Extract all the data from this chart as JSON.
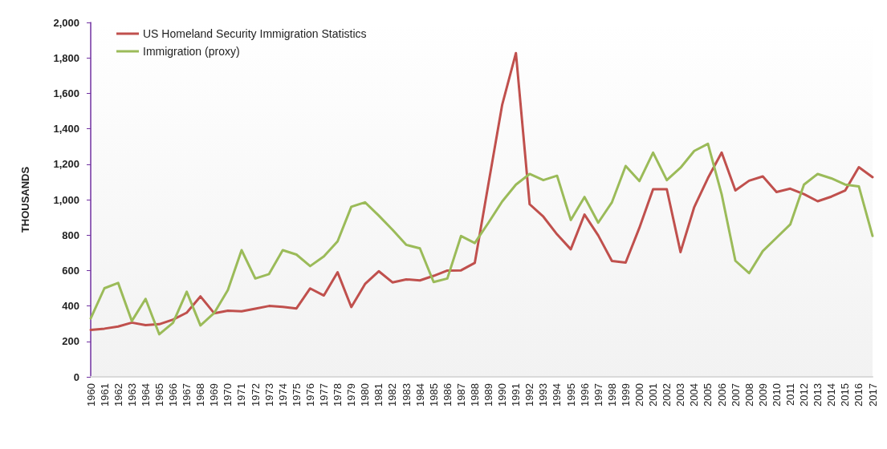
{
  "chart_data": {
    "type": "line",
    "ylabel": "THOUSANDS",
    "categories": [
      "1960",
      "1961",
      "1962",
      "1963",
      "1964",
      "1965",
      "1966",
      "1967",
      "1968",
      "1969",
      "1970",
      "1971",
      "1972",
      "1973",
      "1974",
      "1975",
      "1976",
      "1977",
      "1978",
      "1979",
      "1980",
      "1981",
      "1982",
      "1983",
      "1984",
      "1985",
      "1986",
      "1987",
      "1988",
      "1989",
      "1990",
      "1991",
      "1992",
      "1993",
      "1994",
      "1995",
      "1996",
      "1997",
      "1998",
      "1999",
      "2000",
      "2001",
      "2002",
      "2003",
      "2004",
      "2005",
      "2006",
      "2007",
      "2008",
      "2009",
      "2010",
      "2011",
      "2012",
      "2013",
      "2014",
      "2015",
      "2016",
      "2017"
    ],
    "series": [
      {
        "name": "US Homeland Security Immigration Statistics",
        "color": "#c0504d",
        "values": [
          265,
          272,
          284,
          306,
          292,
          297,
          323,
          362,
          454,
          359,
          373,
          370,
          385,
          400,
          395,
          386,
          499,
          459,
          590,
          394,
          524,
          596,
          533,
          550,
          544,
          570,
          600,
          601,
          643,
          1090,
          1536,
          1827,
          974,
          904,
          804,
          720,
          916,
          798,
          654,
          645,
          841,
          1059,
          1059,
          704,
          958,
          1122,
          1266,
          1052,
          1107,
          1131,
          1043,
          1062,
          1031,
          991,
          1017,
          1051,
          1183,
          1127
        ]
      },
      {
        "name": "Immigration (proxy)",
        "color": "#9bbb59",
        "values": [
          330,
          500,
          530,
          315,
          440,
          240,
          305,
          480,
          290,
          360,
          490,
          715,
          555,
          580,
          715,
          690,
          625,
          680,
          765,
          960,
          985,
          910,
          830,
          745,
          725,
          535,
          555,
          795,
          755,
          870,
          990,
          1085,
          1145,
          1110,
          1135,
          885,
          1015,
          870,
          985,
          1190,
          1105,
          1265,
          1110,
          1180,
          1275,
          1315,
          1030,
          655,
          585,
          710,
          785,
          860,
          1085,
          1145,
          1120,
          1085,
          1075,
          795
        ]
      }
    ],
    "ylim": [
      0,
      2000
    ],
    "yticks": [
      0,
      {
        "value": 200,
        "label": "200"
      },
      {
        "value": 400,
        "label": "400"
      },
      {
        "value": 600,
        "label": "600"
      },
      {
        "value": 800,
        "label": "800"
      },
      {
        "value": 1000,
        "label": "1,000"
      },
      {
        "value": 1200,
        "label": "1,200"
      },
      {
        "value": 1400,
        "label": "1,400"
      },
      {
        "value": 1600,
        "label": "1,600"
      },
      {
        "value": 1800,
        "label": "1,800"
      },
      {
        "value": 2000,
        "label": "2,000"
      }
    ],
    "grid": false,
    "legend": "top left",
    "marker": "none",
    "line_style": "solid"
  }
}
